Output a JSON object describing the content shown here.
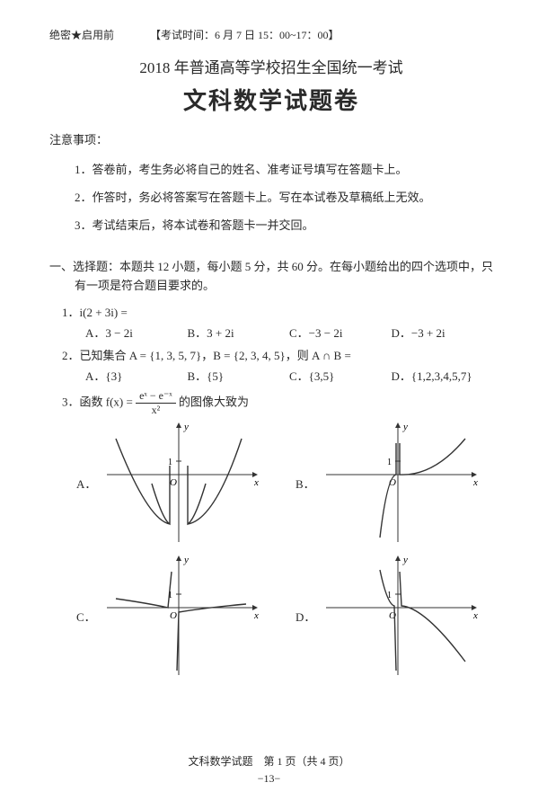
{
  "header": {
    "secret": "绝密★启用前",
    "exam_time": "【考试时间：6 月 7 日 15：00~17：00】",
    "title_sub": "2018 年普通高等学校招生全国统一考试",
    "title_main": "文科数学试题卷"
  },
  "notes": {
    "heading": "注意事项：",
    "items": [
      "1．答卷前，考生务必将自己的姓名、准考证号填写在答题卡上。",
      "2．作答时，务必将答案写在答题卡上。写在本试卷及草稿纸上无效。",
      "3．考试结束后，将本试卷和答题卡一并交回。"
    ]
  },
  "section1": {
    "heading_line1": "一、选择题：本题共 12 小题，每小题 5 分，共 60 分。在每小题给出的四个选项中，只",
    "heading_line2": "有一项是符合题目要求的。"
  },
  "q1": {
    "stem": "1．i(2 + 3i) =",
    "opts": {
      "A": "A．3 − 2i",
      "B": "B．3 + 2i",
      "C": "C．−3 − 2i",
      "D": "D．−3 + 2i"
    }
  },
  "q2": {
    "stem": "2．已知集合 A = {1, 3, 5, 7}，B = {2, 3, 4, 5}，则 A ∩ B =",
    "opts": {
      "A": "A．{3}",
      "B": "B．{5}",
      "C": "C．{3,5}",
      "D": "D．{1,2,3,4,5,7}"
    }
  },
  "q3": {
    "stem_prefix": "3．函数 f(x) = ",
    "stem_suffix": " 的图像大致为",
    "frac_num": "eˣ − e⁻ˣ",
    "frac_den": "x²",
    "opts": {
      "A": "A．",
      "B": "B．",
      "C": "C．",
      "D": "D．"
    },
    "graph": {
      "width": 180,
      "height": 140,
      "axis_color": "#333333",
      "curve_color": "#333333",
      "origin_label": "O",
      "ytick_label": "1",
      "A": {
        "paths": [
          "M 20 20 Q 55 110 80 115 L 80 50 M 80 50 L 80 115 Q 72 110 60 70",
          "M 100 50 L 100 115 Q 108 110 120 70 M 100 115 Q 130 110 160 20"
        ]
      },
      "B": {
        "paths": [
          "M 70 130 Q 78 62 88 60 L 88 25",
          "M 92 25 L 92 60 Q 130 62 165 20"
        ]
      },
      "C": {
        "paths": [
          "M 20 50 Q 55 55 78 60 L 82 20",
          "M 88 130 L 90 65 Q 120 60 165 56"
        ]
      },
      "D": {
        "paths": [
          "M 70 18 Q 78 56 86 58 L 88 130",
          "M 92 20 L 94 58 Q 120 60 165 120"
        ]
      }
    }
  },
  "footer": {
    "line1": "文科数学试题　第 1 页（共 4 页）",
    "line2": "−13−"
  }
}
